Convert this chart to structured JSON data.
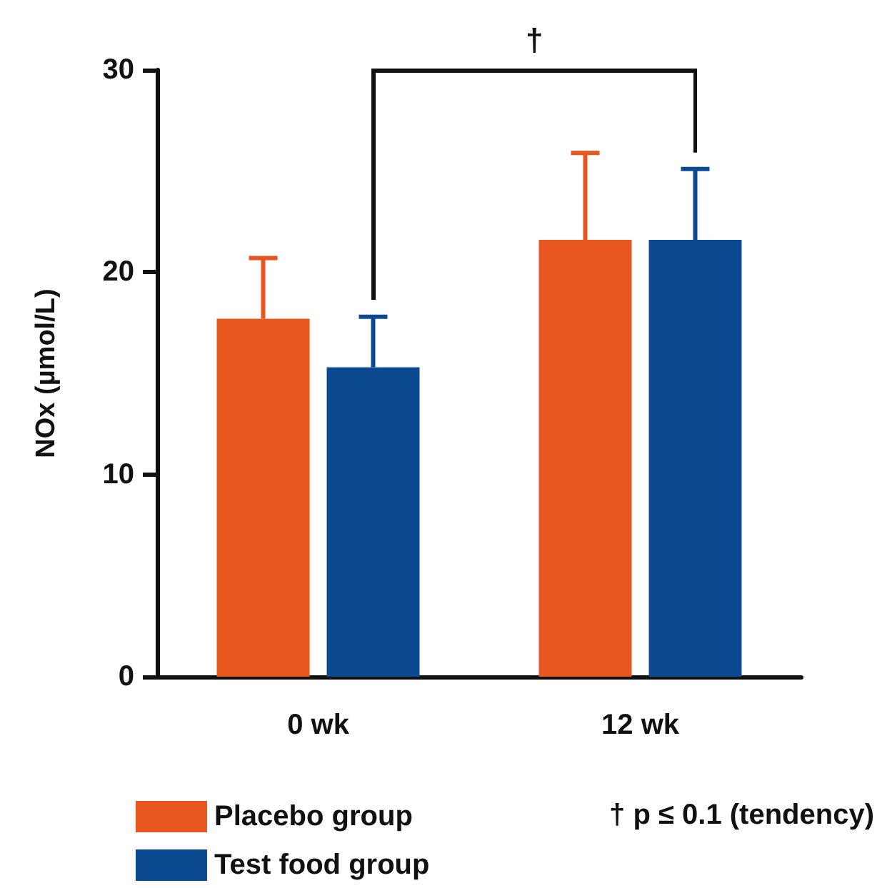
{
  "chart_data": {
    "type": "bar",
    "ylabel": "NOx (µmol/L)",
    "categories": [
      "0 wk",
      "12 wk"
    ],
    "series": [
      {
        "name": "Placebo group",
        "color": "#e8561f",
        "values": [
          17.7,
          21.6
        ],
        "errors": [
          [
            17.7,
            20.7
          ],
          [
            21.6,
            25.9
          ]
        ]
      },
      {
        "name": "Test food group",
        "color": "#0b4a91",
        "values": [
          15.3,
          21.6
        ],
        "errors": [
          [
            15.3,
            17.8
          ],
          [
            21.6,
            25.1
          ]
        ]
      }
    ],
    "ylim": [
      0,
      30
    ],
    "yticks": [
      0,
      10,
      20,
      30
    ],
    "grid": false,
    "legend": "bottom left",
    "annotations": [
      "†",
      "† p ≤ 0.1 (tendency)"
    ]
  }
}
